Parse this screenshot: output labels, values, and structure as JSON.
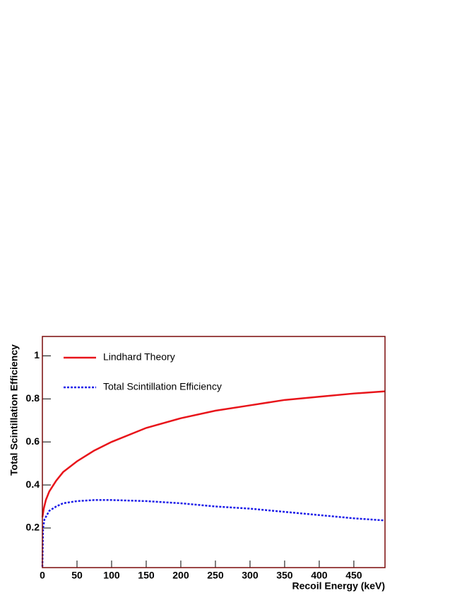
{
  "chart_data": {
    "type": "line",
    "x_label": "Recoil Energy (keV)",
    "y_label": "Total Scintillation Efficiency",
    "xlim": [
      0,
      495
    ],
    "ylim": [
      0.016,
      1.09
    ],
    "xticks": [
      0,
      50,
      100,
      150,
      200,
      250,
      300,
      350,
      400,
      450
    ],
    "yticks": [
      0.2,
      0.4,
      0.6,
      0.8,
      1
    ],
    "series": [
      {
        "name": "Lindhard Theory",
        "color": "#e8141a",
        "x": [
          0,
          2,
          5,
          10,
          20,
          30,
          50,
          75,
          100,
          150,
          200,
          250,
          300,
          350,
          400,
          450,
          495
        ],
        "values": [
          0.25,
          0.29,
          0.33,
          0.37,
          0.42,
          0.46,
          0.51,
          0.56,
          0.6,
          0.665,
          0.71,
          0.745,
          0.77,
          0.795,
          0.81,
          0.825,
          0.835
        ]
      },
      {
        "name": "Total Scintillation Efficiency",
        "color": "#1a1ae8",
        "x": [
          0,
          1,
          3,
          10,
          20,
          30,
          50,
          75,
          100,
          150,
          200,
          250,
          300,
          350,
          400,
          450,
          495
        ],
        "values": [
          0.02,
          0.2,
          0.24,
          0.28,
          0.3,
          0.315,
          0.325,
          0.33,
          0.33,
          0.325,
          0.315,
          0.3,
          0.29,
          0.275,
          0.26,
          0.245,
          0.235
        ]
      }
    ]
  }
}
